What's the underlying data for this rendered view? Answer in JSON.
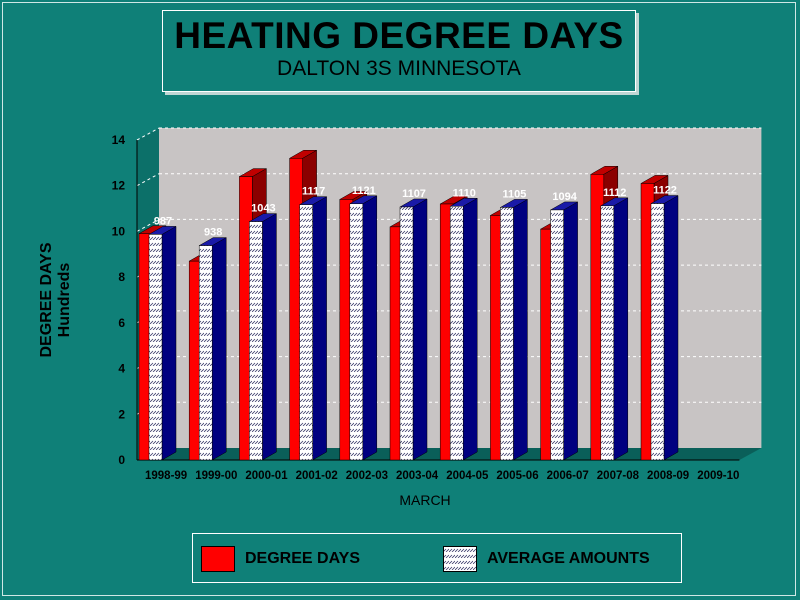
{
  "chart_data": {
    "type": "bar",
    "title": "HEATING DEGREE DAYS",
    "subtitle": "DALTON 3S MINNESOTA",
    "ylabel": "DEGREE DAYS",
    "ylabel_unit": "Hundreds",
    "xlabel": "MARCH",
    "ylim": [
      0,
      14
    ],
    "yticks": [
      "0",
      "2",
      "4",
      "6",
      "8",
      "10",
      "12",
      "14"
    ],
    "grid": true,
    "legend_position": "bottom",
    "categories": [
      "1998-99",
      "1999-00",
      "2000-01",
      "2001-02",
      "2002-03",
      "2003-04",
      "2004-05",
      "2005-06",
      "2006-07",
      "2007-08",
      "2008-09",
      "2009-10"
    ],
    "series": [
      {
        "name": "DEGREE DAYS",
        "color": "#ff0000",
        "values": [
          9.9,
          8.7,
          12.4,
          13.2,
          11.4,
          10.2,
          11.2,
          10.7,
          10.1,
          12.5,
          12.1,
          null
        ]
      },
      {
        "name": "AVERAGE AMOUNTS",
        "color": "#1010a0",
        "values": [
          9.87,
          9.38,
          10.43,
          11.17,
          11.21,
          11.07,
          11.1,
          11.05,
          10.94,
          11.12,
          11.22,
          null
        ],
        "labels": [
          "987",
          "938",
          "1043",
          "1117",
          "1121",
          "1107",
          "1110",
          "1105",
          "1094",
          "1112",
          "1122",
          ""
        ]
      }
    ]
  },
  "legend": {
    "degree_days_label": "DEGREE DAYS",
    "average_label": "AVERAGE AMOUNTS"
  }
}
